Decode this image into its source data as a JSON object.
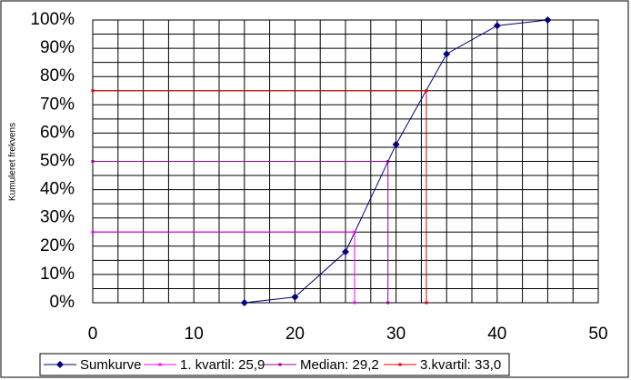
{
  "chart_data": {
    "type": "line",
    "y_label": "Kumuleret frekvens",
    "xlim": [
      0,
      50
    ],
    "xticks": [
      0,
      10,
      20,
      30,
      40,
      50
    ],
    "ylim": [
      0,
      100
    ],
    "yticks": [
      {
        "value": 0,
        "label": "0%"
      },
      {
        "value": 10,
        "label": "10%"
      },
      {
        "value": 20,
        "label": "20%"
      },
      {
        "value": 30,
        "label": "30%"
      },
      {
        "value": 40,
        "label": "40%"
      },
      {
        "value": 50,
        "label": "50%"
      },
      {
        "value": 60,
        "label": "60%"
      },
      {
        "value": 70,
        "label": "70%"
      },
      {
        "value": 80,
        "label": "80%"
      },
      {
        "value": 90,
        "label": "90%"
      },
      {
        "value": 100,
        "label": "100%"
      }
    ],
    "grid": true,
    "x_minor_divisions": 4,
    "y_minor_divisions": 2,
    "legend": "bottom",
    "series": [
      {
        "name": "Sumkurve",
        "color": "#000080",
        "x": [
          15,
          20,
          25,
          30,
          35,
          40,
          45
        ],
        "values": [
          0,
          2,
          18,
          56,
          88,
          98,
          100
        ]
      },
      {
        "name": "1. kvartil: 25,9",
        "color": "#ff00ff",
        "x": [
          0,
          25.9,
          25.9
        ],
        "values": [
          25,
          25,
          0
        ]
      },
      {
        "name": "Median: 29,2",
        "color": "#990099",
        "x": [
          0,
          29.2,
          29.2
        ],
        "values": [
          50,
          50,
          0
        ]
      },
      {
        "name": "3.kvartil: 33,0",
        "color": "#e00000",
        "x": [
          0,
          33,
          33
        ],
        "values": [
          75,
          75,
          0
        ]
      }
    ]
  }
}
